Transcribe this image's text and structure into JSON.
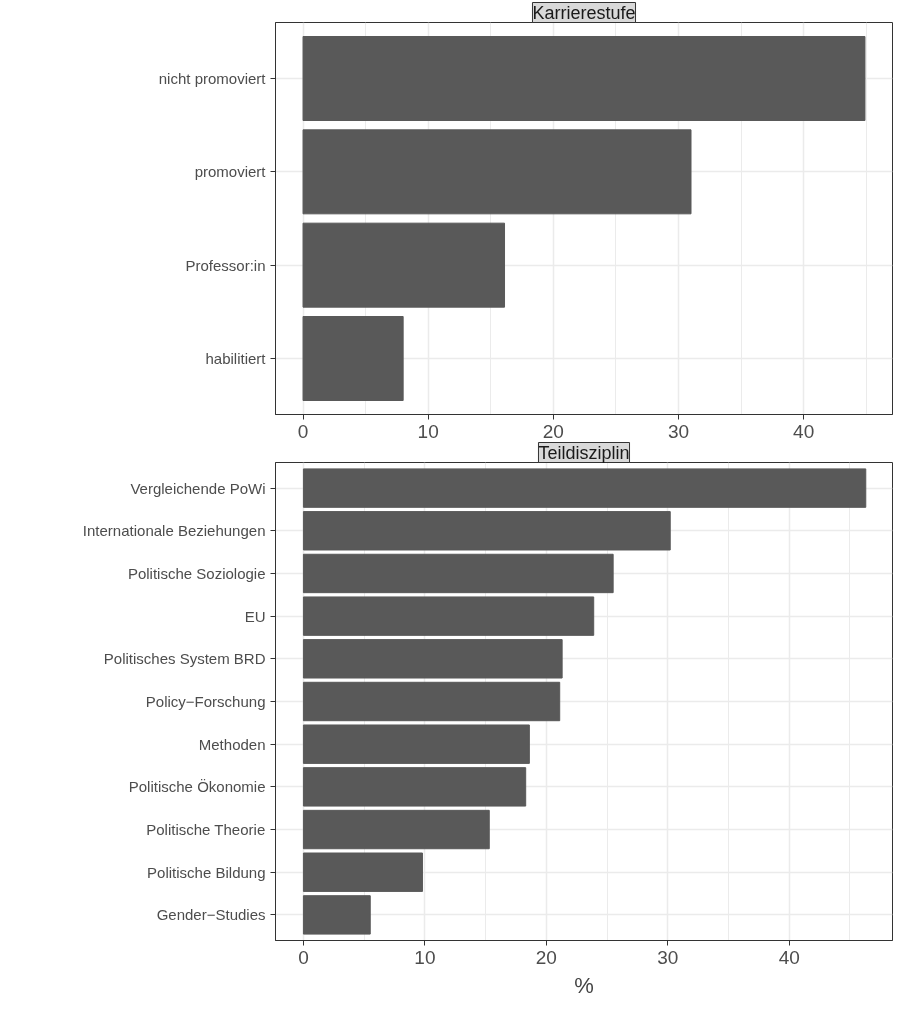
{
  "chart_data": [
    {
      "type": "bar",
      "title": "Karrierestufe",
      "orientation": "horizontal",
      "categories": [
        "nicht promoviert",
        "promoviert",
        "Professor:in",
        "habilitiert"
      ],
      "values": [
        44.9,
        31.0,
        16.1,
        8.0
      ],
      "color": "#595959",
      "xlim": [
        -2.2,
        47.1
      ],
      "xticks": [
        0,
        10,
        20,
        30,
        40
      ],
      "grid": true
    },
    {
      "type": "bar",
      "title": "Teildisziplin",
      "xlabel": "%",
      "orientation": "horizontal",
      "categories": [
        "Vergleichende PoWi",
        "Internationale Beziehungen",
        "Politische Soziologie",
        "EU",
        "Politisches System BRD",
        "Policy−Forschung",
        "Methoden",
        "Politische Ökonomie",
        "Politische Theorie",
        "Politische Bildung",
        "Gender−Studies"
      ],
      "values": [
        46.3,
        30.2,
        25.5,
        23.9,
        21.3,
        21.1,
        18.6,
        18.3,
        15.3,
        9.8,
        5.5
      ],
      "color": "#595959",
      "xlim": [
        -2.3,
        48.5
      ],
      "xticks": [
        0,
        10,
        20,
        30,
        40
      ],
      "grid": true
    }
  ]
}
